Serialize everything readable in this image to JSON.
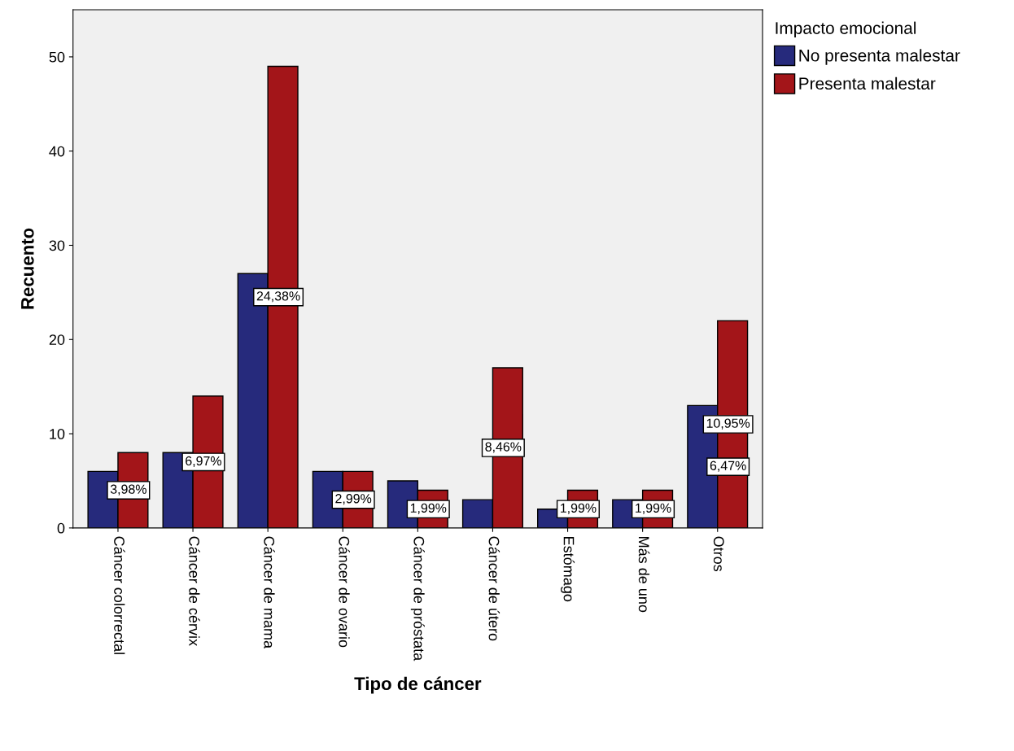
{
  "chart_data": {
    "type": "bar",
    "xlabel": "Tipo de cáncer",
    "ylabel": "Recuento",
    "legend_title": "Impacto emocional",
    "legend": "top right",
    "categories": [
      "Cáncer colorrectal",
      "Cáncer de cérvix",
      "Cáncer de mama",
      "Cáncer de ovario",
      "Cáncer de próstata",
      "Cáncer de útero",
      "Estómago",
      "Más de uno",
      "Otros"
    ],
    "series": [
      {
        "name": "No presenta malestar",
        "color": "#262a7c",
        "values": [
          6,
          8,
          27,
          6,
          5,
          3,
          2,
          3,
          13
        ]
      },
      {
        "name": "Presenta malestar",
        "color": "#a31519",
        "values": [
          8,
          14,
          49,
          6,
          4,
          17,
          4,
          4,
          22
        ]
      }
    ],
    "annotations": [
      {
        "text": "3,98%",
        "x": "Cáncer colorrectal",
        "y": 4
      },
      {
        "text": "6,97%",
        "x": "Cáncer de cérvix",
        "y": 7
      },
      {
        "text": "24,38%",
        "x": "Cáncer de mama",
        "y": 24.5
      },
      {
        "text": "2,99%",
        "x": "Cáncer de ovario",
        "y": 3
      },
      {
        "text": "1,99%",
        "x": "Cáncer de próstata",
        "y": 2
      },
      {
        "text": "8,46%",
        "x": "Cáncer de útero",
        "y": 8.5
      },
      {
        "text": "1,99%",
        "x": "Estómago",
        "y": 2
      },
      {
        "text": "1,99%",
        "x": "Más de uno",
        "y": 2
      },
      {
        "text": "6,47%",
        "x": "Otros",
        "y": 6.5
      },
      {
        "text": "10,95%",
        "x": "Otros",
        "y": 11
      }
    ],
    "ylim": [
      0,
      55
    ],
    "yticks": [
      0,
      10,
      20,
      30,
      40,
      50
    ],
    "grid": false
  }
}
